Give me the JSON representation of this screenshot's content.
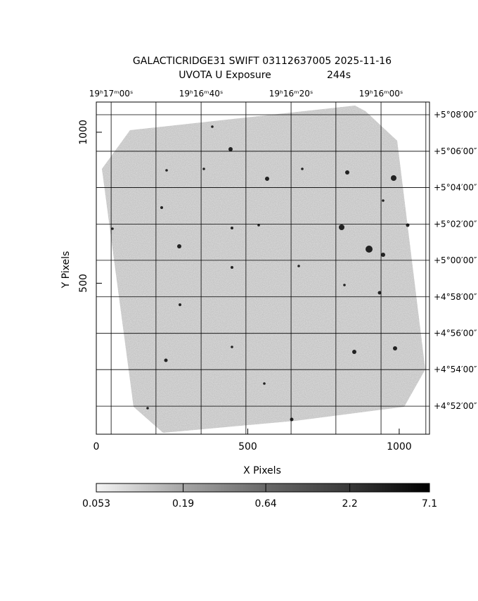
{
  "chart_data": {
    "type": "image",
    "title": "GALACTICRIDGE31 SWIFT 03112637005 2025-11-16",
    "subtitle": "UVOTA U Exposure",
    "exposure": "244s",
    "xlabel": "X Pixels",
    "ylabel": "Y Pixels",
    "xlim": [
      0,
      1100
    ],
    "ylim": [
      0,
      1100
    ],
    "xticks": [
      0,
      500,
      1000
    ],
    "yticks": [
      500,
      1000
    ],
    "x2ticks": [
      {
        "value": 49,
        "label": "19ʰ17ᵐ00ˢ"
      },
      {
        "value": 197,
        "label": null
      },
      {
        "value": 346,
        "label": "19ʰ16ᵐ40ˢ"
      },
      {
        "value": 494,
        "label": null
      },
      {
        "value": 643,
        "label": "19ʰ16ᵐ20ˢ"
      },
      {
        "value": 791,
        "label": null
      },
      {
        "value": 940,
        "label": "19ʰ16ᵐ00ˢ"
      },
      {
        "value": 1088,
        "label": null
      }
    ],
    "y2ticks": [
      {
        "value": 1058,
        "label": "+5°08′00″"
      },
      {
        "value": 937,
        "label": "+5°06′00″"
      },
      {
        "value": 817,
        "label": "+5°04′00″"
      },
      {
        "value": 696,
        "label": "+5°02′00″"
      },
      {
        "value": 576,
        "label": "+5°00′00″"
      },
      {
        "value": 455,
        "label": "+4°58′00″"
      },
      {
        "value": 334,
        "label": "+4°56′00″"
      },
      {
        "value": 214,
        "label": "+4°54′00″"
      },
      {
        "value": 93,
        "label": "+4°52′00″"
      }
    ],
    "grid": true,
    "colorbar": {
      "lim": [
        0.053,
        7.1
      ],
      "log": true,
      "ticks": [
        0.053,
        0.19,
        0.64,
        2.2,
        7.1
      ]
    }
  }
}
